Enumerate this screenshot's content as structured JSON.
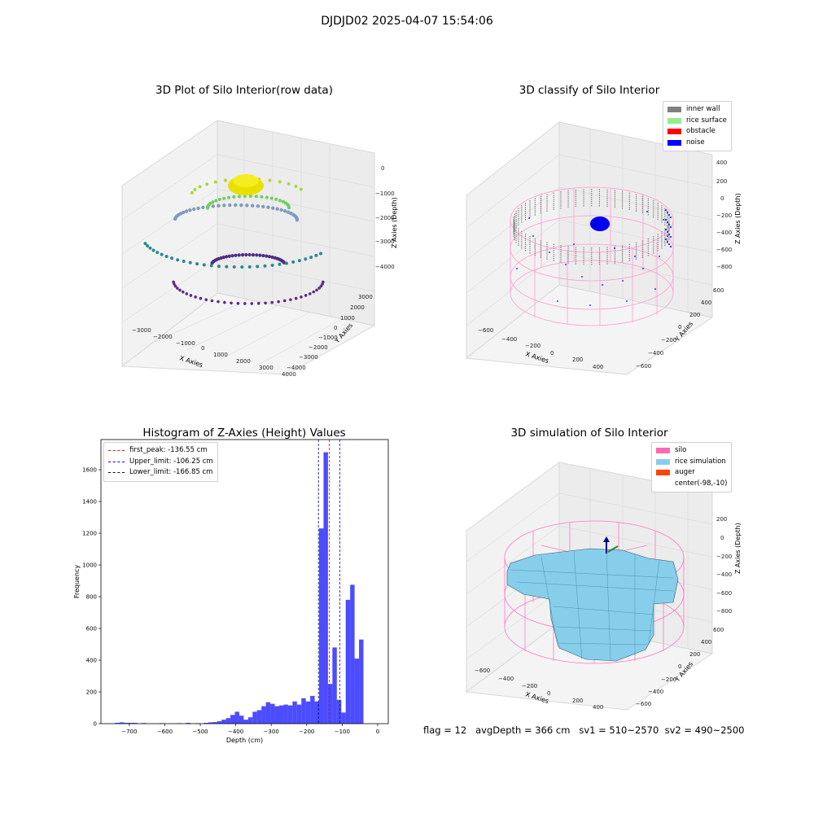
{
  "figure": {
    "title": "DJDJD02 2025-04-07 15:54:06",
    "status_text": "flag = 12   avgDepth = 366 cm   sv1 = 510~2570  sv2 = 490~2500"
  },
  "panel_raw": {
    "title": "3D Plot of Silo Interior(row data)",
    "xlabel": "X Axies",
    "ylabel": "Y Axies",
    "zlabel": "Z Axies (Depth)",
    "xticks": [
      "−3000",
      "−2000",
      "−1000",
      "0",
      "1000",
      "2000",
      "3000",
      "4000"
    ],
    "yticks": [
      "3000",
      "2000",
      "1000",
      "0",
      "−1000",
      "−2000",
      "−3000",
      "−4000"
    ],
    "zticks": [
      "0",
      "−1000",
      "−2000",
      "−3000",
      "−4000"
    ]
  },
  "panel_classify": {
    "title": "3D classify of Silo Interior",
    "xlabel": "X Axies",
    "ylabel": "Y Axies",
    "zlabel": "Z Axies (Depth)",
    "xticks": [
      "−600",
      "−400",
      "−200",
      "0",
      "200",
      "400"
    ],
    "yticks": [
      "600",
      "400",
      "200",
      "0",
      "−200",
      "−400",
      "−600"
    ],
    "zticks": [
      "400",
      "200",
      "0",
      "−200",
      "−400",
      "−600",
      "−800"
    ],
    "legend": [
      {
        "label": "inner wall",
        "color": "#808080"
      },
      {
        "label": "rice surface",
        "color": "#90ee90"
      },
      {
        "label": "obstacle",
        "color": "#ff0000"
      },
      {
        "label": "noise",
        "color": "#0000ff"
      }
    ]
  },
  "panel_sim": {
    "title": "3D simulation of Silo Interior",
    "xlabel": "X Axies",
    "ylabel": "Y Axies",
    "zlabel": "Z Axies (Depth)",
    "xticks": [
      "−600",
      "−400",
      "−200",
      "0",
      "200",
      "400"
    ],
    "yticks": [
      "600",
      "400",
      "200",
      "0",
      "−200",
      "−400",
      "−600"
    ],
    "zticks": [
      "200",
      "0",
      "−200",
      "−400",
      "−600",
      "−800"
    ],
    "legend": [
      {
        "label": "silo",
        "color": "#ff69b4"
      },
      {
        "label": "rice simulation",
        "color": "#87ceeb"
      },
      {
        "label": "auger",
        "color": "#ff4500"
      },
      {
        "label": "center(-98,-10)",
        "color": ""
      }
    ]
  },
  "chart_data": [
    {
      "type": "histogram",
      "title": "Histogram of Z-Axies (Height) Values",
      "xlabel": "Depth (cm)",
      "ylabel": "Frequency",
      "xlim": [
        -780,
        30
      ],
      "ylim": [
        0,
        1790
      ],
      "bin_width": 12.5,
      "bar_color": "#0000ff",
      "bins": [
        {
          "x": -740,
          "count": 5
        },
        {
          "x": -727.5,
          "count": 8
        },
        {
          "x": -715,
          "count": 5
        },
        {
          "x": -702.5,
          "count": 5
        },
        {
          "x": -690,
          "count": 5
        },
        {
          "x": -665,
          "count": 4
        },
        {
          "x": -615,
          "count": 3
        },
        {
          "x": -565,
          "count": 3
        },
        {
          "x": -540,
          "count": 5
        },
        {
          "x": -515,
          "count": 3
        },
        {
          "x": -490,
          "count": 5
        },
        {
          "x": -477.5,
          "count": 8
        },
        {
          "x": -465,
          "count": 10
        },
        {
          "x": -452.5,
          "count": 15
        },
        {
          "x": -440,
          "count": 25
        },
        {
          "x": -427.5,
          "count": 35
        },
        {
          "x": -415,
          "count": 55
        },
        {
          "x": -402.5,
          "count": 75
        },
        {
          "x": -390,
          "count": 50
        },
        {
          "x": -377.5,
          "count": 25
        },
        {
          "x": -365,
          "count": 40
        },
        {
          "x": -352.5,
          "count": 75
        },
        {
          "x": -340,
          "count": 85
        },
        {
          "x": -327.5,
          "count": 110
        },
        {
          "x": -315,
          "count": 135
        },
        {
          "x": -302.5,
          "count": 125
        },
        {
          "x": -290,
          "count": 110
        },
        {
          "x": -277.5,
          "count": 115
        },
        {
          "x": -265,
          "count": 120
        },
        {
          "x": -252.5,
          "count": 115
        },
        {
          "x": -240,
          "count": 140
        },
        {
          "x": -227.5,
          "count": 120
        },
        {
          "x": -215,
          "count": 160
        },
        {
          "x": -202.5,
          "count": 140
        },
        {
          "x": -190,
          "count": 175
        },
        {
          "x": -177.5,
          "count": 140
        },
        {
          "x": -165,
          "count": 1230
        },
        {
          "x": -152.5,
          "count": 1710
        },
        {
          "x": -140,
          "count": 250
        },
        {
          "x": -127.5,
          "count": 480
        },
        {
          "x": -115,
          "count": 150
        },
        {
          "x": -102.5,
          "count": 70
        },
        {
          "x": -90,
          "count": 780
        },
        {
          "x": -77.5,
          "count": 875
        },
        {
          "x": -65,
          "count": 410
        },
        {
          "x": -52.5,
          "count": 530
        }
      ],
      "reference_lines": [
        {
          "label": "first_peak: -136.55 cm",
          "x": -136.55,
          "color": "#ff0000"
        },
        {
          "label": "Upper_limit: -106.25 cm",
          "x": -106.25,
          "color": "#0000ff"
        },
        {
          "label": "Lower_limit: -166.85 cm",
          "x": -166.85,
          "color": "#000080"
        }
      ],
      "xticks": [
        -700,
        -600,
        -500,
        -400,
        -300,
        -200,
        -100,
        0
      ],
      "xtick_labels": [
        "−700",
        "−600",
        "−500",
        "−400",
        "−300",
        "−200",
        "−100",
        "0"
      ],
      "yticks": [
        0,
        200,
        400,
        600,
        800,
        1000,
        1200,
        1400,
        1600
      ],
      "legend_position": "upper-left"
    }
  ]
}
